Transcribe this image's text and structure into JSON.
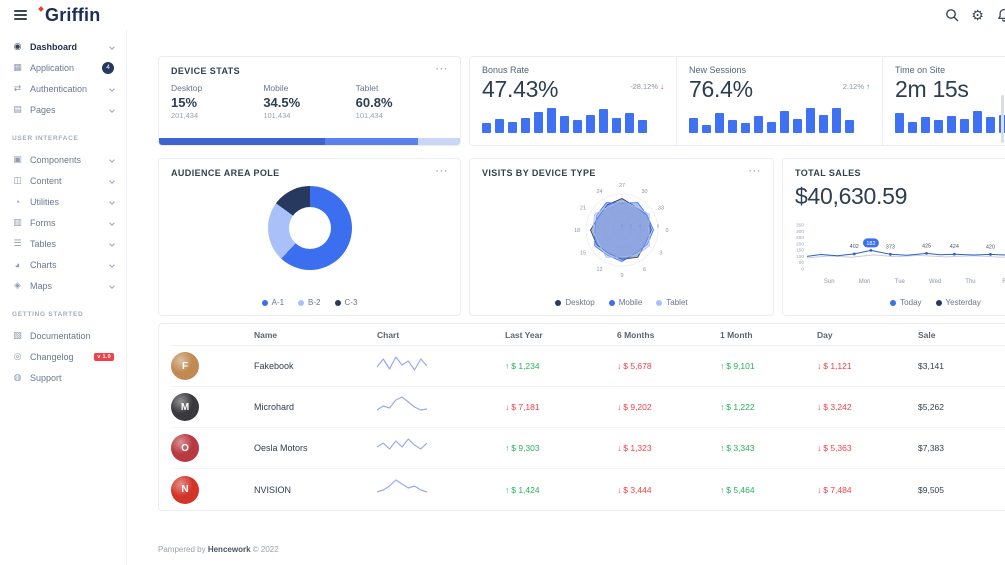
{
  "theme": {
    "primary": "#3b6ff0",
    "navy": "#27395f",
    "light_blue": "#a9c1f8",
    "success": "#26b356",
    "danger": "#f0414b"
  },
  "header": {
    "logo": "Griffin"
  },
  "sidebar": {
    "sections": [
      {
        "title": null,
        "items": [
          {
            "label": "Dashboard",
            "icon": "dashboard-icon",
            "glyph": "◉",
            "chevron": true,
            "active": true
          },
          {
            "label": "Application",
            "icon": "application-icon",
            "glyph": "▦",
            "badge": "4",
            "badge_style": "navy"
          },
          {
            "label": "Authentication",
            "icon": "authentication-icon",
            "glyph": "⇄",
            "chevron": true
          },
          {
            "label": "Pages",
            "icon": "pages-icon",
            "glyph": "▤",
            "chevron": true
          }
        ]
      },
      {
        "title": "USER INTERFACE",
        "items": [
          {
            "label": "Components",
            "icon": "components-icon",
            "glyph": "▣",
            "chevron": true
          },
          {
            "label": "Content",
            "icon": "content-icon",
            "glyph": "◫",
            "chevron": true
          },
          {
            "label": "Utilities",
            "icon": "utilities-icon",
            "glyph": "◔",
            "chevron": true
          },
          {
            "label": "Forms",
            "icon": "forms-icon",
            "glyph": "▥",
            "chevron": true
          },
          {
            "label": "Tables",
            "icon": "tables-icon",
            "glyph": "☰",
            "chevron": true
          },
          {
            "label": "Charts",
            "icon": "charts-icon",
            "glyph": "◕",
            "chevron": true
          },
          {
            "label": "Maps",
            "icon": "maps-icon",
            "glyph": "◈",
            "chevron": true
          }
        ]
      },
      {
        "title": "GETTING STARTED",
        "items": [
          {
            "label": "Documentation",
            "icon": "documentation-icon",
            "glyph": "▧"
          },
          {
            "label": "Changelog",
            "icon": "changelog-icon",
            "glyph": "◎",
            "badge": "v 1.0",
            "badge_style": "danger"
          },
          {
            "label": "Support",
            "icon": "support-icon",
            "glyph": "◍"
          }
        ]
      }
    ]
  },
  "device_stats": {
    "title": "DEVICE STATS",
    "items": [
      {
        "label": "Desktop",
        "percent": "15%",
        "count": "201,434"
      },
      {
        "label": "Mobile",
        "percent": "34.5%",
        "count": "101,434"
      },
      {
        "label": "Tablet",
        "percent": "60.8%",
        "count": "101,434"
      }
    ],
    "progress": [
      {
        "width": 55,
        "color": "#3e63cf"
      },
      {
        "width": 31,
        "color": "#5b82ea"
      },
      {
        "width": 14,
        "color": "#c9d6f6"
      }
    ]
  },
  "kpis": [
    {
      "label": "Bonus Rate",
      "value": "47.43%",
      "change": "-28.12%",
      "direction": "down",
      "bars": [
        35,
        50,
        40,
        55,
        75,
        90,
        60,
        45,
        65,
        85,
        55,
        70,
        45
      ]
    },
    {
      "label": "New Sessions",
      "value": "76.4%",
      "change": "2.12%",
      "direction": "up",
      "bars": [
        55,
        30,
        70,
        45,
        35,
        60,
        40,
        80,
        50,
        88,
        65,
        90,
        48
      ]
    },
    {
      "label": "Time on Site",
      "value": "2m 15s",
      "change": null,
      "direction": null,
      "bars": [
        70,
        40,
        56,
        46,
        62,
        50,
        78,
        56,
        66,
        46,
        82,
        60,
        52
      ]
    }
  ],
  "audience": {
    "title": "AUDIENCE AREA POLE",
    "chart_data": {
      "type": "pie",
      "segments": [
        {
          "label": "A-1",
          "value": 62,
          "color": "#3b6ff0"
        },
        {
          "label": "B-2",
          "value": 23,
          "color": "#a9c1f8"
        },
        {
          "label": "C-3",
          "value": 15,
          "color": "#27395f"
        }
      ]
    }
  },
  "visits": {
    "title": "VISITS BY DEVICE TYPE",
    "chart_data": {
      "type": "radar",
      "axis_labels": [
        "0",
        "3",
        "6",
        "9",
        "12",
        "15",
        "18",
        "21",
        "24",
        "27",
        "30",
        "33"
      ],
      "scale_ticks": [
        "0",
        "2",
        "4",
        "6",
        "8"
      ],
      "scale_max": 8,
      "series": [
        {
          "name": "Desktop",
          "color": "#27395f",
          "values": [
            6.5,
            6,
            7,
            6.5,
            6,
            6.5,
            7,
            6,
            6.5,
            7,
            6,
            6.5
          ]
        },
        {
          "name": "Mobile",
          "color": "#3b6ff0",
          "values": [
            7,
            6.5,
            6,
            7,
            6.5,
            7,
            6,
            6.5,
            7,
            6,
            7,
            6.5
          ]
        },
        {
          "name": "Tablet",
          "color": "#a9c1f8",
          "values": [
            6,
            7,
            6.5,
            6,
            7,
            6,
            6.5,
            7,
            6,
            6.5,
            6,
            7
          ]
        }
      ]
    },
    "legend": [
      {
        "label": "Desktop",
        "color": "#27395f"
      },
      {
        "label": "Mobile",
        "color": "#3b6ff0"
      },
      {
        "label": "Tablet",
        "color": "#a9c1f8"
      }
    ]
  },
  "total_sales": {
    "title": "TOTAL SALES",
    "amount": "$40,630.59",
    "chart_data": {
      "type": "line",
      "axis_max": 350,
      "y_ticks": [
        "350",
        "300",
        "250",
        "200",
        "150",
        "100",
        "50",
        "0"
      ],
      "x_labels": [
        "Sun",
        "Mon",
        "Tue",
        "Wed",
        "Thu",
        "Fri",
        "Sat"
      ],
      "series": [
        {
          "name": "Yesterday",
          "color": "#27395f",
          "opacity": 0.25,
          "points": [
            [
              0,
              88
            ],
            [
              0.08,
              104
            ],
            [
              0.16,
              94
            ],
            [
              0.24,
              112
            ],
            [
              0.32,
              98
            ],
            [
              0.4,
              108
            ],
            [
              0.5,
              96
            ],
            [
              0.6,
              106
            ],
            [
              0.7,
              94
            ],
            [
              0.8,
              110
            ],
            [
              0.9,
              98
            ],
            [
              1,
              118
            ]
          ]
        },
        {
          "name": "Today",
          "color": "#2f5fd0",
          "opacity": 1,
          "points": [
            [
              0,
              100
            ],
            [
              0.05,
              115
            ],
            [
              0.11,
              106
            ],
            [
              0.17,
              120
            ],
            [
              0.23,
              148
            ],
            [
              0.3,
              117
            ],
            [
              0.36,
              110
            ],
            [
              0.43,
              124
            ],
            [
              0.48,
              113
            ],
            [
              0.53,
              118
            ],
            [
              0.6,
              111
            ],
            [
              0.66,
              116
            ],
            [
              0.74,
              108
            ],
            [
              0.82,
              121
            ],
            [
              0.9,
              114
            ],
            [
              1,
              135
            ]
          ]
        }
      ],
      "point_labels": [
        {
          "text": "402",
          "f": 0.17,
          "v": 120
        },
        {
          "text": "182",
          "f": 0.23,
          "v": 148,
          "highlight": true
        },
        {
          "text": "373",
          "f": 0.3,
          "v": 117
        },
        {
          "text": "425",
          "f": 0.43,
          "v": 124
        },
        {
          "text": "424",
          "f": 0.53,
          "v": 118
        },
        {
          "text": "420",
          "f": 0.66,
          "v": 116
        }
      ]
    },
    "legend": [
      {
        "label": "Today",
        "color": "#3b6ff0"
      },
      {
        "label": "Yesterday",
        "color": "#27395f"
      }
    ]
  },
  "table": {
    "columns": [
      "Name",
      "Chart",
      "Last Year",
      "6 Months",
      "1 Month",
      "Day",
      "Sale"
    ],
    "rows": [
      {
        "name": "Fakebook",
        "avatar_letter": "F",
        "avatar_color": "#c08a52",
        "spark": [
          13,
          5,
          15,
          3,
          11,
          7,
          16,
          5,
          12
        ],
        "last_year": {
          "dir": "up",
          "text": "$ 1,234"
        },
        "six_months": {
          "dir": "down",
          "text": "$ 5,678"
        },
        "one_month": {
          "dir": "up",
          "text": "$ 9,101"
        },
        "day": {
          "dir": "down",
          "text": "$ 1,121"
        },
        "sale": "$3,141"
      },
      {
        "name": "Microhard",
        "avatar_letter": "M",
        "avatar_color": "#3a3a3e",
        "spark": [
          15,
          11,
          13,
          5,
          2,
          7,
          12,
          15,
          14
        ],
        "last_year": {
          "dir": "down",
          "text": "$ 7,181"
        },
        "six_months": {
          "dir": "down",
          "text": "$ 9,202"
        },
        "one_month": {
          "dir": "up",
          "text": "$ 1,222"
        },
        "day": {
          "dir": "down",
          "text": "$ 3,242"
        },
        "sale": "$5,262"
      },
      {
        "name": "Oesla Motors",
        "avatar_letter": "O",
        "avatar_color": "#b8393f",
        "spark": [
          11,
          7,
          13,
          5,
          11,
          3,
          9,
          13,
          7
        ],
        "last_year": {
          "dir": "up",
          "text": "$ 9,303"
        },
        "six_months": {
          "dir": "down",
          "text": "$ 1,323"
        },
        "one_month": {
          "dir": "up",
          "text": "$ 3,343"
        },
        "day": {
          "dir": "down",
          "text": "$ 5,363"
        },
        "sale": "$7,383"
      },
      {
        "name": "NVISION",
        "avatar_letter": "N",
        "avatar_color": "#d23428",
        "spark": [
          15,
          13,
          9,
          3,
          7,
          11,
          9,
          13,
          15
        ],
        "last_year": {
          "dir": "up",
          "text": "$ 1,424"
        },
        "six_months": {
          "dir": "down",
          "text": "$ 3,444"
        },
        "one_month": {
          "dir": "up",
          "text": "$ 5,464"
        },
        "day": {
          "dir": "down",
          "text": "$ 7,484"
        },
        "sale": "$9,505"
      }
    ]
  },
  "footer": {
    "prefix": "Pampered by",
    "brand": "Hencework",
    "suffix": "© 2022"
  }
}
